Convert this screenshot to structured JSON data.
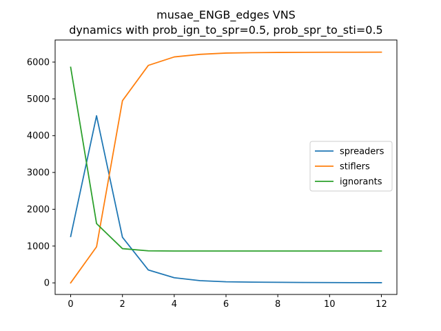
{
  "chart_data": {
    "type": "line",
    "title": "musae_ENGB_edges VNS",
    "subtitle": "dynamics with prob_ign_to_spr=0.5, prob_spr_to_sti=0.5",
    "xlabel": "",
    "ylabel": "",
    "xlim": [
      -0.6,
      12.6
    ],
    "ylim": [
      -315,
      6600
    ],
    "xticks": [
      0,
      2,
      4,
      6,
      8,
      10,
      12
    ],
    "yticks": [
      0,
      1000,
      2000,
      3000,
      4000,
      5000,
      6000
    ],
    "grid": false,
    "legend_position": "center-right",
    "x": [
      0,
      1,
      2,
      3,
      4,
      5,
      6,
      7,
      8,
      9,
      10,
      11,
      12
    ],
    "series": [
      {
        "name": "spreaders",
        "color": "#1f77b4",
        "values": [
          1260,
          4540,
          1240,
          350,
          140,
          60,
          30,
          20,
          15,
          10,
          8,
          6,
          5
        ]
      },
      {
        "name": "stiflers",
        "color": "#ff7f0e",
        "values": [
          0,
          980,
          4950,
          5910,
          6140,
          6210,
          6245,
          6255,
          6262,
          6265,
          6267,
          6268,
          6270
        ]
      },
      {
        "name": "ignorants",
        "color": "#2ca02c",
        "values": [
          5860,
          1610,
          930,
          870,
          865,
          865,
          865,
          865,
          865,
          865,
          865,
          865,
          865
        ]
      }
    ]
  }
}
